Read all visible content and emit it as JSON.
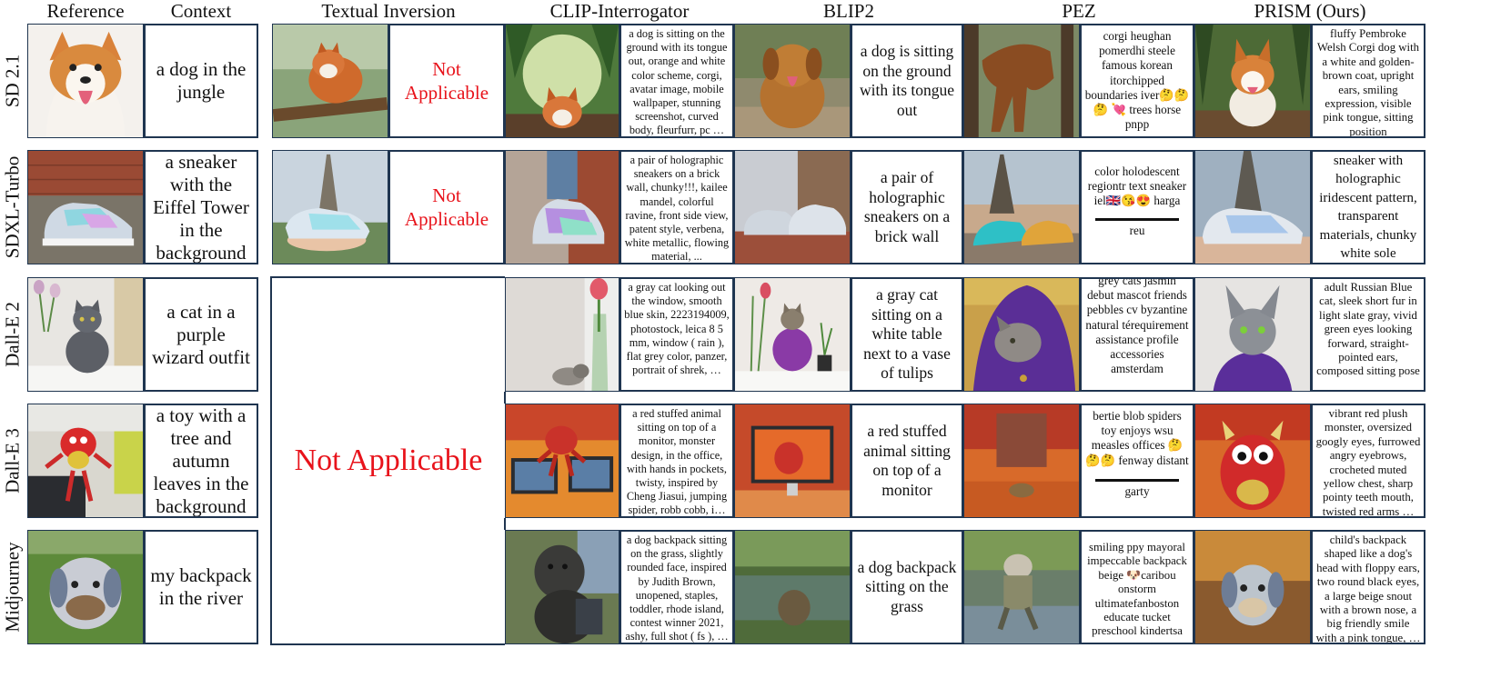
{
  "headers": {
    "reference": "Reference",
    "context": "Context",
    "textual_inversion": "Textual Inversion",
    "clip": "CLIP-Interrogator",
    "blip2": "BLIP2",
    "pez": "PEZ",
    "prism": "PRISM (Ours)"
  },
  "not_applicable": "Not Applicable",
  "colors": {
    "border": "#1f3550",
    "not_applicable_text": "#e8131b"
  },
  "rows": [
    {
      "model": "SD 2.1",
      "context": "a dog in the jungle",
      "ti_not_applicable": "Not Applicable",
      "clip_caption": "a dog is sitting on the ground with its tongue out, orange and white color scheme, corgi, avatar image, mobile wallpaper, stunning screenshot, curved body, fleurfurr, pc …",
      "blip2_caption": "a dog is sitting on the ground with its tongue out",
      "pez_caption": "corgi heughan pomerdhi steele famous korean itorchipped boundaries iver🤔🤔🤔 💘 trees horse pnpp",
      "pez_after_line": "",
      "prism_caption": "fluffy Pembroke Welsh Corgi dog with a white and golden-brown coat, upright ears, smiling expression, visible pink tongue, sitting position"
    },
    {
      "model": "SDXL-Turbo",
      "context": "a sneaker with the Eiffel Tower in the background",
      "ti_not_applicable": "Not Applicable",
      "clip_caption": "a pair of holographic sneakers on a brick wall, chunky!!!, kailee mandel, colorful ravine, front side view, patent style, verbena, white metallic, flowing material, ...",
      "blip2_caption": "a pair of holographic sneakers on a brick wall",
      "pez_caption": "color holodescent regiontr text sneaker iel🇬🇧😘😍 harga",
      "pez_after_line": "reu",
      "prism_caption": "sneaker with holographic iridescent pattern, transparent materials, chunky white sole"
    },
    {
      "model": "Dall-E 2",
      "context": "a cat in a purple wizard outfit",
      "clip_caption": "a gray cat looking out the window, smooth blue skin, 2223194009, photostock, leica 8 5 mm, window ( rain ), flat grey color, panzer, portrait of shrek, …",
      "blip2_caption": "a gray cat sitting on a white table next to a vase of tulips",
      "pez_caption": "grey cats jasmin debut mascot friends pebbles cv byzantine natural térequirement assistance profile accessories amsterdam",
      "pez_after_line": "",
      "prism_caption": "adult Russian Blue cat, sleek short fur in light slate gray, vivid green eyes looking forward, straight-pointed ears, composed sitting pose"
    },
    {
      "model": "Dall-E 3",
      "context": "a toy with a tree and autumn leaves in the background",
      "clip_caption": "a red stuffed animal sitting on top of a monitor, monster design, in the office, with hands in pockets, twisty, inspired by Cheng Jiasui, jumping spider, robb cobb, i…",
      "blip2_caption": "a red stuffed animal sitting on top of a monitor",
      "pez_caption": "bertie blob spiders toy enjoys wsu measles offices 🤔🤔🤔 fenway distant",
      "pez_after_line": "garty",
      "prism_caption": "vibrant red plush monster, oversized googly eyes, furrowed angry eyebrows, crocheted muted yellow chest, sharp pointy teeth mouth, twisted red arms …"
    },
    {
      "model": "Midjourney",
      "context": "my backpack in the river",
      "clip_caption": "a dog backpack sitting on the grass, slightly rounded face, inspired by Judith Brown, unopened, staples, toddler, rhode island, contest winner 2021, ashy, full shot ( fs ), …",
      "blip2_caption": "a dog backpack sitting on the grass",
      "pez_caption": "smiling ppy mayoral impeccable backpack beige 🐶caribou onstorm ultimatefanboston educate tucket preschool kindertsa",
      "pez_after_line": "",
      "prism_caption": "child's backpack shaped like a dog's head with floppy ears, two round black eyes, a large beige snout with a brown nose, a big friendly smile with a pink tongue, …"
    }
  ]
}
